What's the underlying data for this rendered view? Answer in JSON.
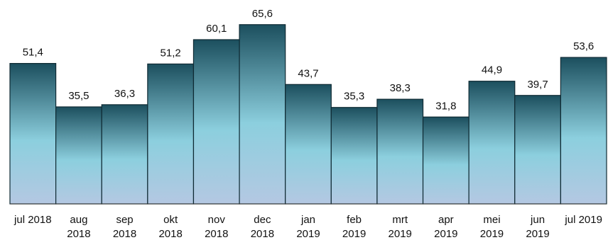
{
  "chart_data": {
    "type": "bar",
    "title": "",
    "xlabel": "",
    "ylabel": "",
    "ylim": [
      0,
      70
    ],
    "grid": false,
    "legend": "none",
    "categories": [
      [
        "jul 2018"
      ],
      [
        "aug",
        "2018"
      ],
      [
        "sep",
        "2018"
      ],
      [
        "okt",
        "2018"
      ],
      [
        "nov",
        "2018"
      ],
      [
        "dec",
        "2018"
      ],
      [
        "jan",
        "2019"
      ],
      [
        "feb",
        "2019"
      ],
      [
        "mrt",
        "2019"
      ],
      [
        "apr",
        "2019"
      ],
      [
        "mei",
        "2019"
      ],
      [
        "jun",
        "2019"
      ],
      [
        "jul 2019"
      ]
    ],
    "values": [
      51.4,
      35.5,
      36.3,
      51.2,
      60.1,
      65.6,
      43.7,
      35.3,
      38.3,
      31.8,
      44.9,
      39.7,
      53.6
    ],
    "value_labels": [
      "51,4",
      "35,5",
      "36,3",
      "51,2",
      "60,1",
      "65,6",
      "43,7",
      "35,3",
      "38,3",
      "31,8",
      "44,9",
      "39,7",
      "53,6"
    ],
    "colors": {
      "bar_top": "#1c4f5e",
      "bar_mid": "#8ccfde",
      "bar_bottom": "#b4c8e2",
      "bar_stroke": "#0f2a33",
      "axis": "#333333"
    }
  }
}
